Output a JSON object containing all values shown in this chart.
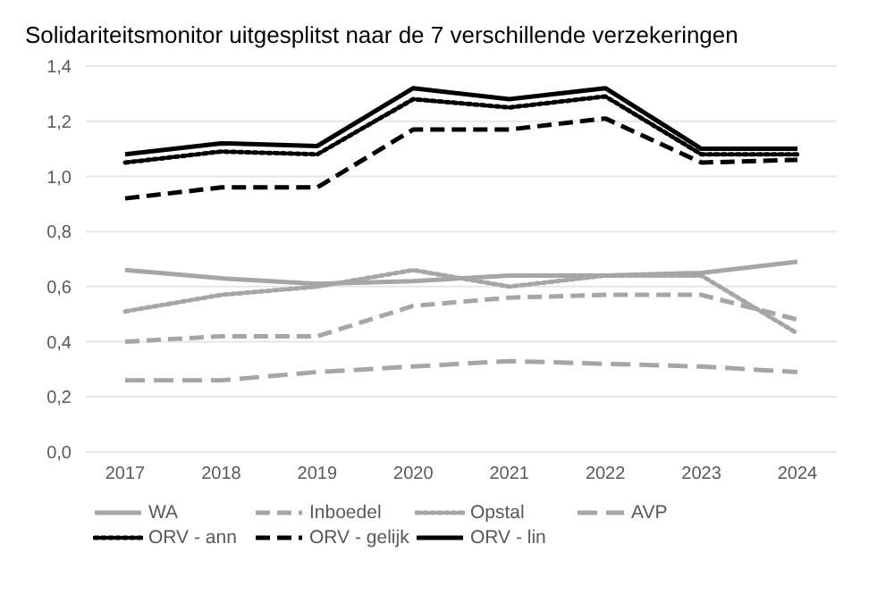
{
  "chart_data": {
    "type": "line",
    "title": "Solidariteitsmonitor uitgesplitst naar de 7 verschillende verzekeringen",
    "categories": [
      "2017",
      "2018",
      "2019",
      "2020",
      "2021",
      "2022",
      "2023",
      "2024"
    ],
    "ylim": [
      0,
      1.4
    ],
    "yticks": [
      {
        "value": 0,
        "label": "0,0"
      },
      {
        "value": 0.2,
        "label": "0,2"
      },
      {
        "value": 0.4,
        "label": "0,4"
      },
      {
        "value": 0.6,
        "label": "0,6"
      },
      {
        "value": 0.8,
        "label": "0,8"
      },
      {
        "value": 1.0,
        "label": "1,0"
      },
      {
        "value": 1.2,
        "label": "1,2"
      },
      {
        "value": 1.4,
        "label": "1,4"
      }
    ],
    "grid": "y",
    "legend": "bottom",
    "marker": "none",
    "series": [
      {
        "name": "WA",
        "color": "#a6a6a6",
        "line_style": "solid",
        "values": [
          0.66,
          0.63,
          0.61,
          0.62,
          0.64,
          0.64,
          0.65,
          0.69
        ]
      },
      {
        "name": "Inboedel",
        "color": "#a6a6a6",
        "line_style": "dashed",
        "values": [
          0.4,
          0.42,
          0.42,
          0.53,
          0.56,
          0.57,
          0.57,
          0.48
        ]
      },
      {
        "name": "Opstal",
        "color": "#a6a6a6",
        "line_style": "dotted",
        "values": [
          0.51,
          0.57,
          0.6,
          0.66,
          0.6,
          0.64,
          0.64,
          0.43
        ]
      },
      {
        "name": "AVP",
        "color": "#a6a6a6",
        "line_style": "longdash",
        "values": [
          0.26,
          0.26,
          0.29,
          0.31,
          0.33,
          0.32,
          0.31,
          0.29
        ]
      },
      {
        "name": "ORV - ann",
        "color": "#000000",
        "line_style": "dotted",
        "values": [
          1.05,
          1.09,
          1.08,
          1.28,
          1.25,
          1.29,
          1.08,
          1.08
        ]
      },
      {
        "name": "ORV - gelijk",
        "color": "#000000",
        "line_style": "dashed",
        "values": [
          0.92,
          0.96,
          0.96,
          1.17,
          1.17,
          1.21,
          1.05,
          1.06
        ]
      },
      {
        "name": "ORV - lin",
        "color": "#000000",
        "line_style": "solid",
        "values": [
          1.08,
          1.12,
          1.11,
          1.32,
          1.28,
          1.32,
          1.1,
          1.1
        ]
      }
    ]
  }
}
